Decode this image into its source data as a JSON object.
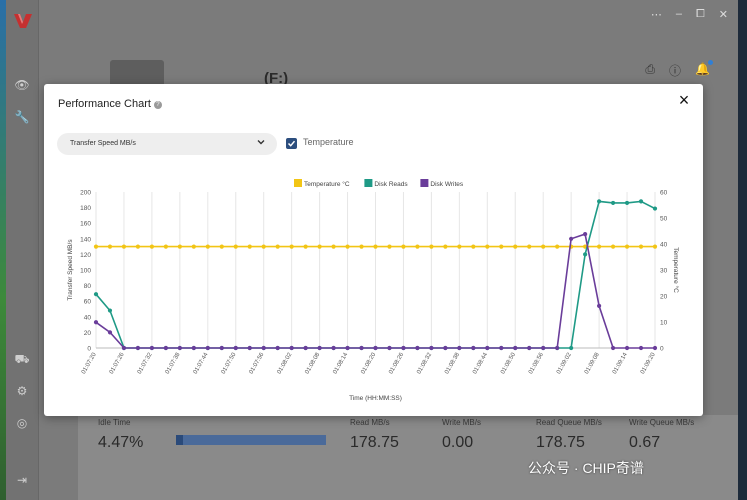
{
  "window": {
    "controls": [
      "⋯",
      "–",
      "⧠",
      "✕"
    ]
  },
  "drive": {
    "label": "(F:)"
  },
  "modal": {
    "title": "Performance Chart",
    "close_label": "×",
    "metric_select": {
      "value": "Transfer Speed MB/s"
    },
    "temperature_checkbox": {
      "label": "Temperature",
      "checked": true
    }
  },
  "chart_data": {
    "type": "line",
    "xlabel": "Time (HH:MM:SS)",
    "ylabel": "Transfer Speed MB/s",
    "y2label": "Temperature °C",
    "ylim": [
      0,
      200
    ],
    "y2lim": [
      0,
      60
    ],
    "yticks": [
      0,
      20,
      40,
      60,
      80,
      100,
      120,
      140,
      160,
      180,
      200
    ],
    "y2ticks": [
      0,
      10,
      20,
      30,
      40,
      50,
      60
    ],
    "x": [
      "01:07:20",
      "01:07:23",
      "01:07:26",
      "01:07:29",
      "01:07:32",
      "01:07:35",
      "01:07:38",
      "01:07:41",
      "01:07:44",
      "01:07:47",
      "01:07:50",
      "01:07:53",
      "01:07:56",
      "01:07:59",
      "01:08:02",
      "01:08:05",
      "01:08:08",
      "01:08:11",
      "01:08:14",
      "01:08:17",
      "01:08:20",
      "01:08:23",
      "01:08:26",
      "01:08:29",
      "01:08:32",
      "01:08:35",
      "01:08:38",
      "01:08:41",
      "01:08:44",
      "01:08:47",
      "01:08:50",
      "01:08:53",
      "01:08:56",
      "01:08:59",
      "01:09:02",
      "01:09:05",
      "01:09:08",
      "01:09:11",
      "01:09:14",
      "01:09:17",
      "01:09:20"
    ],
    "xtick_labels": [
      "01:07:20",
      "01:07:26",
      "01:07:32",
      "01:07:38",
      "01:07:44",
      "01:07:50",
      "01:07:56",
      "01:08:02",
      "01:08:08",
      "01:08:14",
      "01:08:20",
      "01:08:26",
      "01:08:32",
      "01:08:38",
      "01:08:44",
      "01:08:50",
      "01:08:56",
      "01:09:02",
      "01:09:08",
      "01:09:14",
      "01:09:20"
    ],
    "legend_position": "top",
    "grid": "vertical",
    "series": [
      {
        "name": "Temperature °C",
        "axis": "right",
        "color": "#f2c515",
        "values": [
          39,
          39,
          39,
          39,
          39,
          39,
          39,
          39,
          39,
          39,
          39,
          39,
          39,
          39,
          39,
          39,
          39,
          39,
          39,
          39,
          39,
          39,
          39,
          39,
          39,
          39,
          39,
          39,
          39,
          39,
          39,
          39,
          39,
          39,
          39,
          39,
          39,
          39,
          39,
          39,
          39
        ]
      },
      {
        "name": "Disk Reads",
        "axis": "left",
        "color": "#1f9a86",
        "values": [
          69,
          48,
          0,
          0,
          0,
          0,
          0,
          0,
          0,
          0,
          0,
          0,
          0,
          0,
          0,
          0,
          0,
          0,
          0,
          0,
          0,
          0,
          0,
          0,
          0,
          0,
          0,
          0,
          0,
          0,
          0,
          0,
          0,
          0,
          0,
          120,
          188,
          186,
          186,
          188,
          178.75
        ]
      },
      {
        "name": "Disk Writes",
        "axis": "left",
        "color": "#6a3d9a",
        "values": [
          33,
          20,
          0,
          0,
          0,
          0,
          0,
          0,
          0,
          0,
          0,
          0,
          0,
          0,
          0,
          0,
          0,
          0,
          0,
          0,
          0,
          0,
          0,
          0,
          0,
          0,
          0,
          0,
          0,
          0,
          0,
          0,
          0,
          0,
          140,
          146,
          54,
          0,
          0,
          0,
          0
        ]
      }
    ]
  },
  "stats": {
    "idle_time": {
      "label": "Idle Time",
      "value": "4.47%",
      "fraction": 0.0447
    },
    "read": {
      "label": "Read MB/s",
      "value": "178.75"
    },
    "write": {
      "label": "Write MB/s",
      "value": "0.00"
    },
    "read_queue": {
      "label": "Read Queue MB/s",
      "value": "178.75"
    },
    "write_queue": {
      "label": "Write Queue MB/s",
      "value": "0.67"
    }
  },
  "watermark": {
    "text": "公众号 · CHIP奇谱"
  },
  "icons": [
    "eye-icon",
    "wrench-icon",
    "truck-icon",
    "gear-icon",
    "help-circle-icon",
    "arrow-right-icon",
    "cast-icon",
    "info-icon",
    "bell-icon",
    "help-icon",
    "chevron-down-icon",
    "check-icon",
    "close-icon"
  ]
}
